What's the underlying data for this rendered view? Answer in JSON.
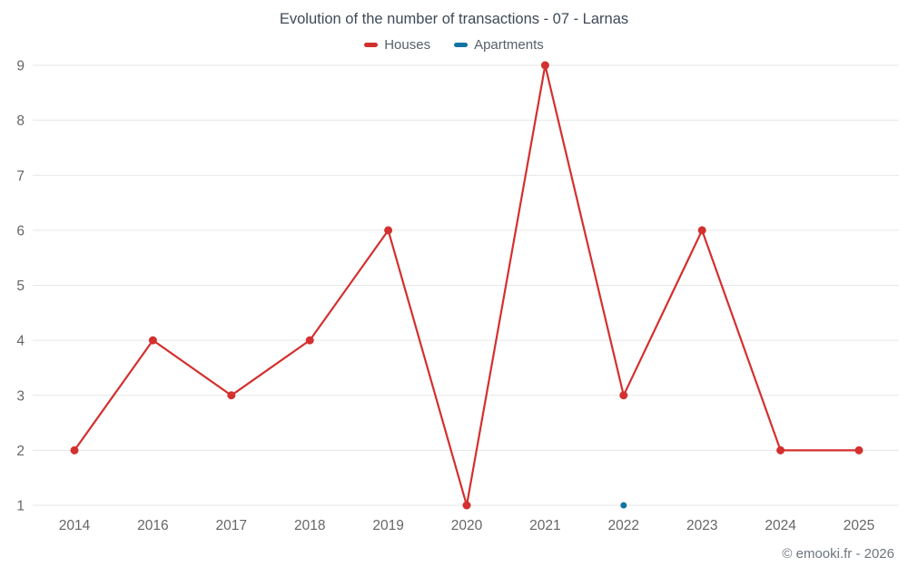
{
  "title": "Evolution of the number of transactions - 07 - Larnas",
  "legend": [
    {
      "label": "Houses",
      "color": "#d3302f"
    },
    {
      "label": "Apartments",
      "color": "#1273a2"
    }
  ],
  "attribution": "© emooki.fr - 2026",
  "chart_data": {
    "type": "line",
    "title": "Evolution of the number of transactions - 07 - Larnas",
    "categories": [
      "2014",
      "2016",
      "2017",
      "2018",
      "2019",
      "2020",
      "2021",
      "2022",
      "2023",
      "2024",
      "2025"
    ],
    "series": [
      {
        "name": "Houses",
        "color": "#d3302f",
        "marker_radius": 4.5,
        "values": [
          2,
          4,
          3,
          4,
          6,
          1,
          9,
          3,
          6,
          2,
          2
        ]
      },
      {
        "name": "Apartments",
        "color": "#1273a2",
        "marker_radius": 3.5,
        "values": [
          null,
          null,
          null,
          null,
          null,
          null,
          null,
          1,
          null,
          null,
          null
        ]
      }
    ],
    "xlabel": "",
    "ylabel": "",
    "ylim": [
      1,
      9
    ],
    "yticks": [
      1,
      2,
      3,
      4,
      5,
      6,
      7,
      8,
      9
    ],
    "grid": "horizontal",
    "grid_color": "#e6e6e6",
    "tick_label_color": "#666666",
    "legend_position": "top"
  }
}
